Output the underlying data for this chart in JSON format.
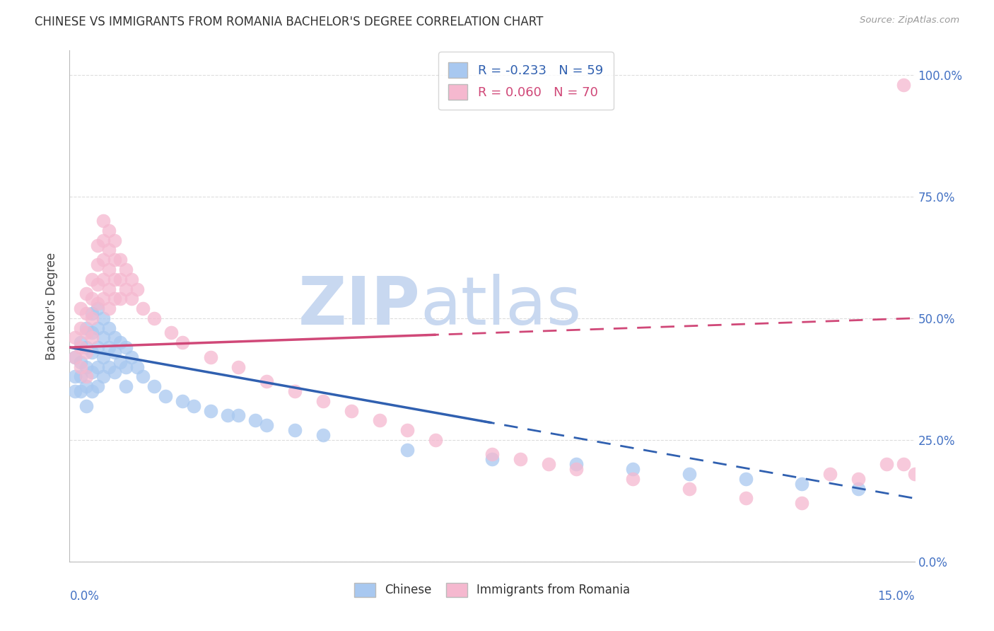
{
  "title": "CHINESE VS IMMIGRANTS FROM ROMANIA BACHELOR'S DEGREE CORRELATION CHART",
  "source": "Source: ZipAtlas.com",
  "ylabel": "Bachelor's Degree",
  "xlim": [
    0.0,
    0.15
  ],
  "ylim": [
    0.0,
    1.05
  ],
  "ytick_positions": [
    0.0,
    0.25,
    0.5,
    0.75,
    1.0
  ],
  "ytick_labels": [
    "0.0%",
    "25.0%",
    "50.0%",
    "75.0%",
    "100.0%"
  ],
  "xtick_label_left": "0.0%",
  "xtick_label_right": "15.0%",
  "chinese_R": -0.233,
  "chinese_N": 59,
  "romania_R": 0.06,
  "romania_N": 70,
  "chinese_color": "#A8C8F0",
  "romania_color": "#F5B8CF",
  "chinese_line_color": "#3060B0",
  "romania_line_color": "#D04878",
  "watermark_ZIP": "ZIP",
  "watermark_atlas": "atlas",
  "watermark_color": "#C8D8F0",
  "background_color": "#FFFFFF",
  "grid_color": "#DDDDDD",
  "title_color": "#333333",
  "axis_label_color": "#4472C4",
  "title_fontsize": 12,
  "legend_fontsize": 13,
  "tick_label_fontsize": 12,
  "chinese_x": [
    0.001,
    0.001,
    0.001,
    0.002,
    0.002,
    0.002,
    0.002,
    0.003,
    0.003,
    0.003,
    0.003,
    0.003,
    0.004,
    0.004,
    0.004,
    0.004,
    0.004,
    0.005,
    0.005,
    0.005,
    0.005,
    0.005,
    0.006,
    0.006,
    0.006,
    0.006,
    0.007,
    0.007,
    0.007,
    0.008,
    0.008,
    0.008,
    0.009,
    0.009,
    0.01,
    0.01,
    0.01,
    0.011,
    0.012,
    0.013,
    0.015,
    0.017,
    0.02,
    0.022,
    0.025,
    0.028,
    0.03,
    0.033,
    0.035,
    0.04,
    0.045,
    0.06,
    0.075,
    0.09,
    0.1,
    0.11,
    0.12,
    0.13,
    0.14
  ],
  "chinese_y": [
    0.42,
    0.38,
    0.35,
    0.45,
    0.41,
    0.38,
    0.35,
    0.48,
    0.44,
    0.4,
    0.36,
    0.32,
    0.51,
    0.47,
    0.43,
    0.39,
    0.35,
    0.52,
    0.48,
    0.44,
    0.4,
    0.36,
    0.5,
    0.46,
    0.42,
    0.38,
    0.48,
    0.44,
    0.4,
    0.46,
    0.43,
    0.39,
    0.45,
    0.41,
    0.44,
    0.4,
    0.36,
    0.42,
    0.4,
    0.38,
    0.36,
    0.34,
    0.33,
    0.32,
    0.31,
    0.3,
    0.3,
    0.29,
    0.28,
    0.27,
    0.26,
    0.23,
    0.21,
    0.2,
    0.19,
    0.18,
    0.17,
    0.16,
    0.15
  ],
  "romania_x": [
    0.001,
    0.001,
    0.002,
    0.002,
    0.002,
    0.002,
    0.003,
    0.003,
    0.003,
    0.003,
    0.003,
    0.004,
    0.004,
    0.004,
    0.004,
    0.005,
    0.005,
    0.005,
    0.005,
    0.006,
    0.006,
    0.006,
    0.006,
    0.006,
    0.007,
    0.007,
    0.007,
    0.007,
    0.007,
    0.008,
    0.008,
    0.008,
    0.008,
    0.009,
    0.009,
    0.009,
    0.01,
    0.01,
    0.011,
    0.011,
    0.012,
    0.013,
    0.015,
    0.018,
    0.02,
    0.025,
    0.03,
    0.035,
    0.04,
    0.045,
    0.05,
    0.055,
    0.06,
    0.065,
    0.075,
    0.08,
    0.085,
    0.09,
    0.1,
    0.11,
    0.12,
    0.13,
    0.135,
    0.14,
    0.145,
    0.148,
    0.15,
    0.152,
    0.155,
    0.148
  ],
  "romania_y": [
    0.46,
    0.42,
    0.52,
    0.48,
    0.44,
    0.4,
    0.55,
    0.51,
    0.47,
    0.43,
    0.38,
    0.58,
    0.54,
    0.5,
    0.46,
    0.65,
    0.61,
    0.57,
    0.53,
    0.7,
    0.66,
    0.62,
    0.58,
    0.54,
    0.68,
    0.64,
    0.6,
    0.56,
    0.52,
    0.66,
    0.62,
    0.58,
    0.54,
    0.62,
    0.58,
    0.54,
    0.6,
    0.56,
    0.58,
    0.54,
    0.56,
    0.52,
    0.5,
    0.47,
    0.45,
    0.42,
    0.4,
    0.37,
    0.35,
    0.33,
    0.31,
    0.29,
    0.27,
    0.25,
    0.22,
    0.21,
    0.2,
    0.19,
    0.17,
    0.15,
    0.13,
    0.12,
    0.18,
    0.17,
    0.2,
    0.2,
    0.18,
    0.15,
    0.17,
    0.98
  ]
}
